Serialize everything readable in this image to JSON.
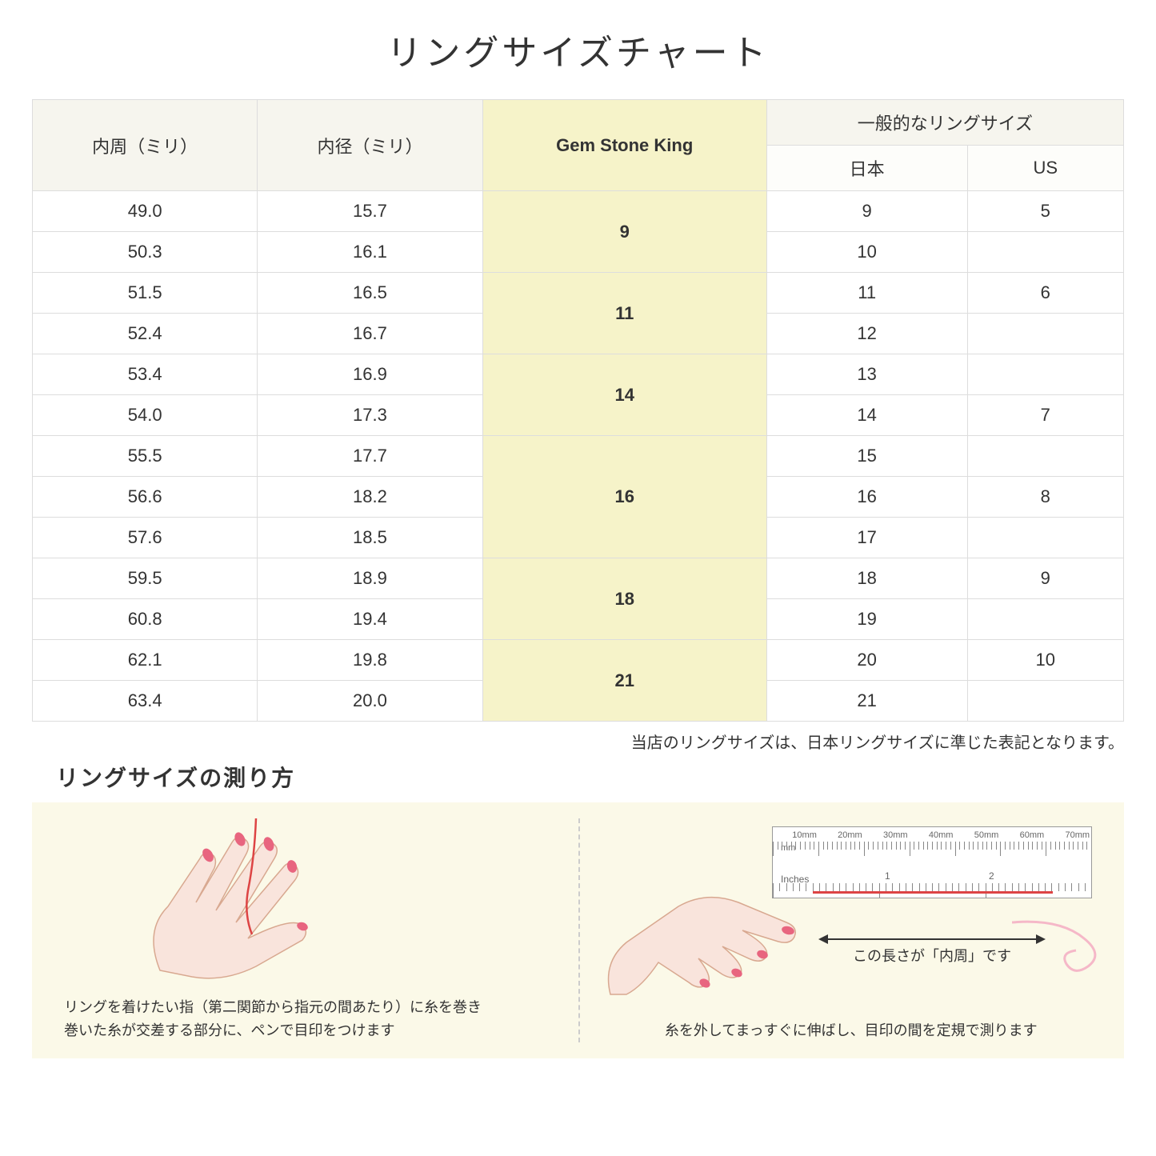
{
  "title": "リングサイズチャート",
  "headers": {
    "circumference": "内周（ミリ）",
    "diameter": "内径（ミリ）",
    "gsk": "Gem Stone King",
    "general": "一般的なリングサイズ",
    "japan": "日本",
    "us": "US"
  },
  "groups": [
    {
      "gsk": "9",
      "rows": [
        {
          "c": "49.0",
          "d": "15.7",
          "jp": "9",
          "us": "5"
        },
        {
          "c": "50.3",
          "d": "16.1",
          "jp": "10",
          "us": ""
        }
      ]
    },
    {
      "gsk": "11",
      "rows": [
        {
          "c": "51.5",
          "d": "16.5",
          "jp": "11",
          "us": "6"
        },
        {
          "c": "52.4",
          "d": "16.7",
          "jp": "12",
          "us": ""
        }
      ]
    },
    {
      "gsk": "14",
      "rows": [
        {
          "c": "53.4",
          "d": "16.9",
          "jp": "13",
          "us": ""
        },
        {
          "c": "54.0",
          "d": "17.3",
          "jp": "14",
          "us": "7"
        }
      ]
    },
    {
      "gsk": "16",
      "rows": [
        {
          "c": "55.5",
          "d": "17.7",
          "jp": "15",
          "us": ""
        },
        {
          "c": "56.6",
          "d": "18.2",
          "jp": "16",
          "us": "8"
        },
        {
          "c": "57.6",
          "d": "18.5",
          "jp": "17",
          "us": ""
        }
      ]
    },
    {
      "gsk": "18",
      "rows": [
        {
          "c": "59.5",
          "d": "18.9",
          "jp": "18",
          "us": "9"
        },
        {
          "c": "60.8",
          "d": "19.4",
          "jp": "19",
          "us": ""
        }
      ]
    },
    {
      "gsk": "21",
      "rows": [
        {
          "c": "62.1",
          "d": "19.8",
          "jp": "20",
          "us": "10"
        },
        {
          "c": "63.4",
          "d": "20.0",
          "jp": "21",
          "us": ""
        }
      ]
    }
  ],
  "note": "当店のリングサイズは、日本リングサイズに準じた表記となります。",
  "howto_title": "リングサイズの測り方",
  "howto_left_caption": "リングを着けたい指（第二関節から指元の間あたり）に糸を巻き\n巻いた糸が交差する部分に、ペンで目印をつけます",
  "howto_right_label": "この長さが「内周」です",
  "howto_right_caption": "糸を外してまっすぐに伸ばし、目印の間を定規で測ります",
  "ruler": {
    "mm_label": "mm",
    "in_label": "Inches",
    "mm_marks": [
      "10mm",
      "20mm",
      "30mm",
      "40mm",
      "50mm",
      "60mm",
      "70mm"
    ],
    "in_marks": [
      "1",
      "2"
    ]
  },
  "colors": {
    "header_bg": "#f6f5ee",
    "gsk_bg": "#f6f3c9",
    "border": "#dddddd",
    "howto_bg": "#fbf9e8",
    "hand_fill": "#f9e4dc",
    "hand_stroke": "#d8a890",
    "nail": "#e8657f",
    "thread": "#d44",
    "pink_curl": "#f5b8c8"
  }
}
